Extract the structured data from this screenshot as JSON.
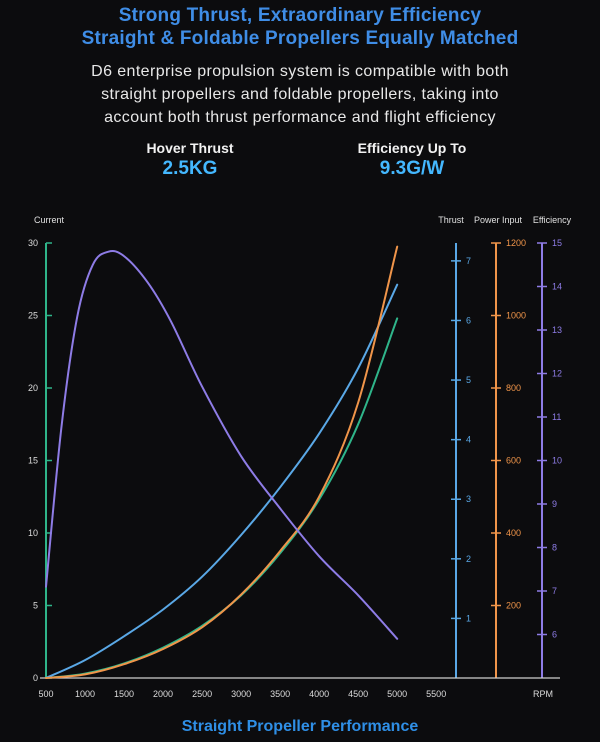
{
  "header": {
    "title_line1": "Strong Thrust, Extraordinary Efficiency",
    "title_line2": "Straight & Foldable Propellers Equally Matched",
    "description": [
      "D6 enterprise propulsion system is compatible with both",
      "straight propellers and foldable propellers, taking into",
      "account both thrust performance and flight efficiency"
    ]
  },
  "stats": [
    {
      "label": "Hover Thrust",
      "value": "2.5KG"
    },
    {
      "label": "Efficiency Up To",
      "value": "9.3G/W"
    }
  ],
  "caption": "Straight Propeller Performance",
  "colors": {
    "title": "#3f8de6",
    "stat_value": "#44b8ff",
    "current": "#2fb58a",
    "thrust": "#5aa8e6",
    "power": "#f0954a",
    "efficiency": "#8e7ce6"
  },
  "chart_data": {
    "type": "line",
    "xlabel": "RPM",
    "x_ticks": [
      500,
      1000,
      1500,
      2000,
      2500,
      3000,
      3500,
      4000,
      4500,
      5000,
      5500
    ],
    "xlim": [
      500,
      5600
    ],
    "axes": [
      {
        "key": "current",
        "label": "Current",
        "ylim": [
          0,
          30
        ],
        "ticks": [
          0,
          5,
          10,
          15,
          20,
          25,
          30
        ]
      },
      {
        "key": "thrust",
        "label": "Thrust",
        "ylim": [
          0,
          7.3
        ],
        "ticks": [
          1,
          2,
          3,
          4,
          5,
          6,
          7
        ]
      },
      {
        "key": "power",
        "label": "Power Input",
        "ylim": [
          0,
          1200
        ],
        "ticks": [
          200,
          400,
          600,
          800,
          1000,
          1200
        ]
      },
      {
        "key": "efficiency",
        "label": "Efficiency",
        "ylim": [
          5,
          15
        ],
        "ticks": [
          6,
          7,
          8,
          9,
          10,
          11,
          12,
          13,
          14,
          15
        ]
      }
    ],
    "series": [
      {
        "axis": "current",
        "x": [
          500,
          1000,
          1500,
          2000,
          2500,
          3000,
          3500,
          4000,
          4500,
          5000
        ],
        "y": [
          0,
          0.3,
          1.0,
          2.1,
          3.6,
          5.7,
          8.6,
          12.3,
          17.5,
          24.8
        ]
      },
      {
        "axis": "thrust",
        "x": [
          500,
          1000,
          1500,
          2000,
          2500,
          3000,
          3500,
          4000,
          4500,
          5000
        ],
        "y": [
          0,
          0.3,
          0.7,
          1.15,
          1.7,
          2.4,
          3.2,
          4.1,
          5.2,
          6.6
        ]
      },
      {
        "axis": "power",
        "x": [
          500,
          1000,
          1500,
          2000,
          2500,
          3000,
          3500,
          4000,
          4500,
          5000
        ],
        "y": [
          0,
          10,
          38,
          80,
          140,
          230,
          350,
          500,
          760,
          1190
        ]
      },
      {
        "axis": "efficiency",
        "x": [
          500,
          700,
          900,
          1100,
          1300,
          1500,
          1800,
          2100,
          2500,
          3000,
          3500,
          4000,
          4500,
          5000
        ],
        "y": [
          7.1,
          10.8,
          13.3,
          14.5,
          14.8,
          14.7,
          14.1,
          13.2,
          11.7,
          10.1,
          8.9,
          7.8,
          6.9,
          5.9
        ]
      }
    ]
  }
}
